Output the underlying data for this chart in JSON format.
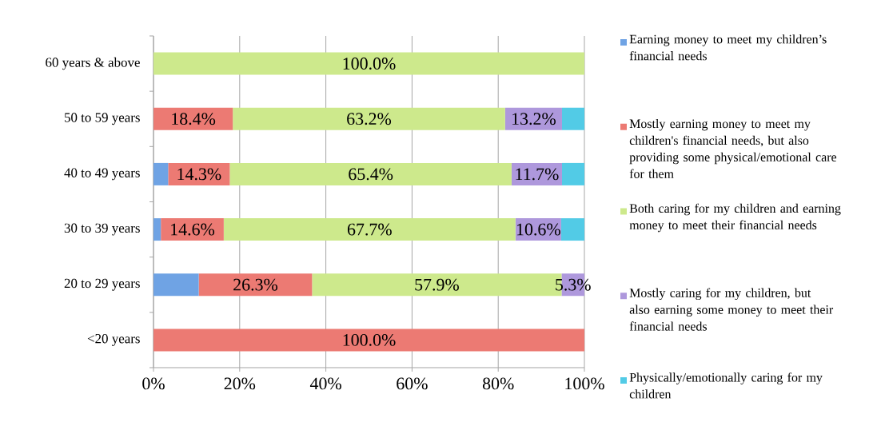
{
  "chart_data": {
    "type": "bar",
    "orientation": "horizontal",
    "stacked": true,
    "categories": [
      "60 years & above",
      "50 to 59 years",
      "40 to 49 years",
      "30 to 39 years",
      "20 to 29 years",
      "<20 years"
    ],
    "series": [
      {
        "name": "Earning money to meet my children’s financial needs",
        "color": "#6fa3e4",
        "values": [
          0,
          0,
          3.4,
          1.7,
          10.5,
          0
        ],
        "value_labels": [
          null,
          null,
          null,
          null,
          null,
          null
        ]
      },
      {
        "name": "Mostly earning money to meet my children's financial needs, but also providing some physical/emotional care for them",
        "color": "#ec7a73",
        "values": [
          0,
          18.4,
          14.3,
          14.6,
          26.3,
          100.0
        ],
        "value_labels": [
          null,
          "18.4%",
          "14.3%",
          "14.6%",
          "26.3%",
          "100.0%"
        ]
      },
      {
        "name": "Both caring for my children and earning money to meet their financial needs",
        "color": "#cde98c",
        "values": [
          100.0,
          63.2,
          65.4,
          67.7,
          57.9,
          0
        ],
        "value_labels": [
          "100.0%",
          "63.2%",
          "65.4%",
          "67.7%",
          "57.9%",
          null
        ]
      },
      {
        "name": "Mostly caring for my children, but also earning some money to meet their financial needs",
        "color": "#ae98dc",
        "values": [
          0,
          13.2,
          11.7,
          10.6,
          5.3,
          0
        ],
        "value_labels": [
          null,
          "13.2%",
          "11.7%",
          "10.6%",
          "5.3%",
          null
        ]
      },
      {
        "name": "Physically/emotionally caring for my children",
        "color": "#52cbe6",
        "values": [
          0,
          5.2,
          5.2,
          5.4,
          0,
          0
        ],
        "value_labels": [
          null,
          null,
          null,
          null,
          null,
          null
        ]
      }
    ],
    "xlim": [
      0,
      100
    ],
    "xticks": [
      {
        "value": 0,
        "label": "0%"
      },
      {
        "value": 20,
        "label": "20%"
      },
      {
        "value": 40,
        "label": "40%"
      },
      {
        "value": 60,
        "label": "60%"
      },
      {
        "value": 80,
        "label": "80%"
      },
      {
        "value": 100,
        "label": "100%"
      }
    ],
    "grid": "x",
    "legend": "right"
  }
}
